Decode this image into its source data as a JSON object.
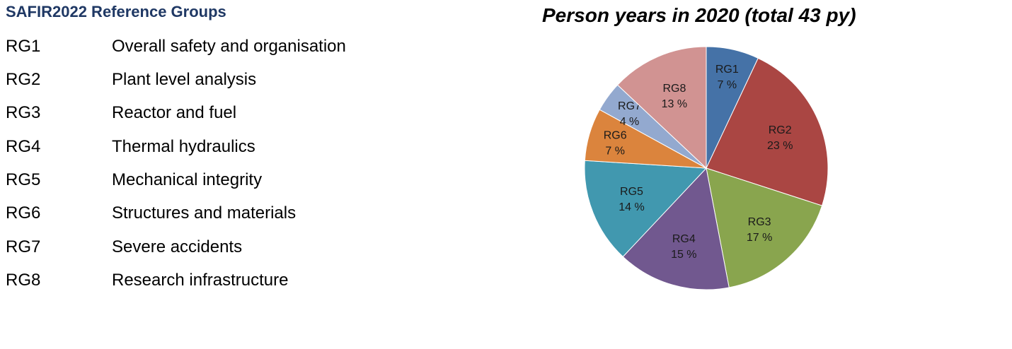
{
  "legend": {
    "title": "SAFIR2022 Reference Groups",
    "items": [
      {
        "code": "RG1",
        "name": "Overall safety and organisation"
      },
      {
        "code": "RG2",
        "name": "Plant level analysis"
      },
      {
        "code": "RG3",
        "name": "Reactor and fuel"
      },
      {
        "code": "RG4",
        "name": "Thermal hydraulics"
      },
      {
        "code": "RG5",
        "name": "Mechanical integrity"
      },
      {
        "code": "RG6",
        "name": "Structures and materials"
      },
      {
        "code": "RG7",
        "name": "Severe accidents"
      },
      {
        "code": "RG8",
        "name": "Research infrastructure"
      }
    ]
  },
  "chart_data": {
    "type": "pie",
    "title": "Person years in 2020 (total 43 py)",
    "start": "12 o'clock",
    "direction": "clockwise",
    "slices": [
      {
        "label": "RG1",
        "value": 7,
        "value_label": "7 %",
        "color": "#4572a7"
      },
      {
        "label": "RG2",
        "value": 23,
        "value_label": "23 %",
        "color": "#aa4643"
      },
      {
        "label": "RG3",
        "value": 17,
        "value_label": "17 %",
        "color": "#89a54e"
      },
      {
        "label": "RG4",
        "value": 15,
        "value_label": "15 %",
        "color": "#71588f"
      },
      {
        "label": "RG5",
        "value": 14,
        "value_label": "14 %",
        "color": "#4198af"
      },
      {
        "label": "RG6",
        "value": 7,
        "value_label": "7 %",
        "color": "#db843d"
      },
      {
        "label": "RG7",
        "value": 4,
        "value_label": "4 %",
        "color": "#93a9cf"
      },
      {
        "label": "RG8",
        "value": 13,
        "value_label": "13 %",
        "color": "#d19392"
      }
    ]
  }
}
